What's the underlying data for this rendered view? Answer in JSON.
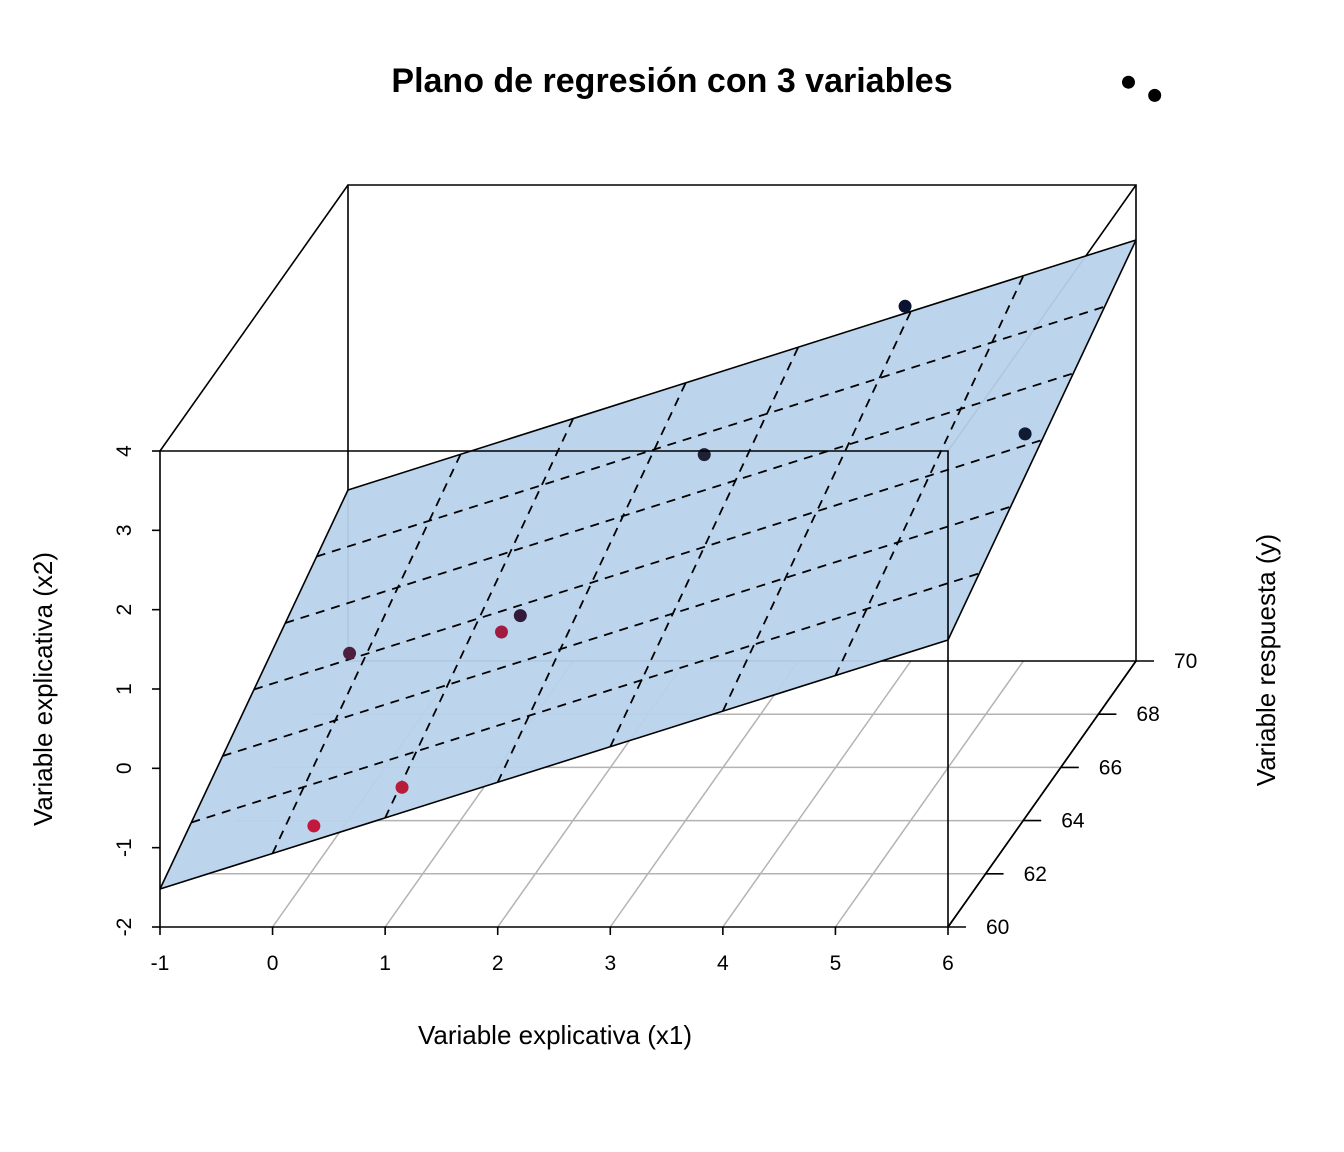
{
  "chart_data": {
    "type": "scatter3d",
    "title": "Plano de regresión con 3 variables",
    "xlabel": "Variable explicativa (x1)",
    "ylabel": "Variable explicativa (x2)",
    "zlabel": "Variable respuesta (y)",
    "x_ticks": [
      "-1",
      "0",
      "1",
      "2",
      "3",
      "4",
      "5",
      "6"
    ],
    "y_ticks": [
      "-2",
      "-1",
      "0",
      "1",
      "2",
      "3",
      "4"
    ],
    "z_ticks": [
      "60",
      "62",
      "64",
      "66",
      "68",
      "70"
    ],
    "xlim": [
      -1,
      6
    ],
    "ylim": [
      -2,
      4
    ],
    "zlim": [
      60,
      70
    ],
    "floor_grid": true,
    "plane_color": "#b8d3ec",
    "points": [
      {
        "x1": 1.1,
        "x2": -0.34,
        "y": 60.3,
        "color": "#b71c3a"
      },
      {
        "x1": 0.3,
        "x2": -0.86,
        "y": 60.4,
        "color": "#c2183d"
      },
      {
        "x1": 1.9,
        "x2": 1.45,
        "y": 60.8,
        "color": "#a21c42"
      },
      {
        "x1": 0.4,
        "x2": 0.88,
        "y": 61.7,
        "color": "#4e1f3d"
      },
      {
        "x1": 1.8,
        "x2": 1.12,
        "y": 62.4,
        "color": "#33193a"
      },
      {
        "x1": 3.2,
        "x2": 2.68,
        "y": 63.8,
        "color": "#1f1f35"
      },
      {
        "x1": 5.9,
        "x2": 2.64,
        "y": 64.7,
        "color": "#0f1a33"
      },
      {
        "x1": 4.7,
        "x2": 3.98,
        "y": 65.5,
        "color": "#0a1430"
      },
      {
        "x1": 6.0,
        "x2": 5.43,
        "y": 69.6,
        "color": "#000000"
      },
      {
        "x1": 6.5,
        "x2": 5.8,
        "y": 68.0,
        "color": "#000000"
      }
    ]
  }
}
